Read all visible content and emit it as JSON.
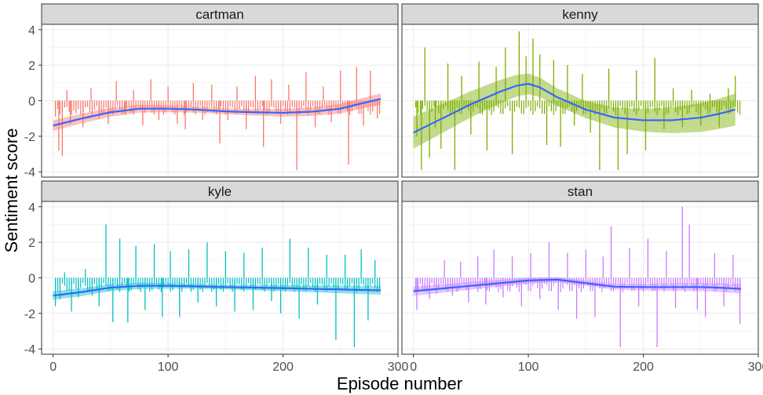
{
  "chart_data": {
    "type": "bar",
    "xlabel": "Episode number",
    "ylabel": "Sentiment score",
    "xlim": [
      -10,
      300
    ],
    "ylim": [
      -4.3,
      4.3
    ],
    "x_ticks": [
      0,
      100,
      200,
      300
    ],
    "x_tick_labels": [
      "0",
      "100",
      "200",
      "300"
    ],
    "y_ticks": [
      -4,
      -2,
      0,
      2,
      4
    ],
    "y_tick_labels": [
      "-4",
      "-2",
      "0",
      "2",
      "4"
    ],
    "grid": true,
    "smooth_color": "#3366ff",
    "panels": [
      {
        "name": "cartman",
        "color": "#f8766d",
        "ribbon_color": "#f8766d",
        "smooth": {
          "x": [
            0,
            25,
            50,
            75,
            100,
            125,
            150,
            175,
            200,
            225,
            250,
            265,
            285
          ],
          "y": [
            -1.4,
            -1.0,
            -0.65,
            -0.45,
            -0.45,
            -0.5,
            -0.6,
            -0.65,
            -0.68,
            -0.62,
            -0.45,
            -0.2,
            0.1
          ]
        },
        "ribbon_half_width": 0.15,
        "bars": {
          "x": [
            2,
            5,
            8,
            12,
            15,
            20,
            26,
            33,
            40,
            48,
            55,
            63,
            70,
            78,
            85,
            92,
            100,
            108,
            115,
            122,
            130,
            138,
            145,
            152,
            160,
            168,
            176,
            183,
            190,
            198,
            205,
            212,
            220,
            228,
            235,
            242,
            250,
            257,
            264,
            270,
            276,
            282
          ],
          "y": [
            -0.9,
            -2.8,
            -3.1,
            0.6,
            -1.3,
            -0.7,
            -1.5,
            0.7,
            -1.0,
            -1.3,
            1.1,
            -0.8,
            0.6,
            -1.4,
            1.2,
            -1.1,
            0.8,
            -1.3,
            -1.6,
            1.0,
            -1.1,
            0.9,
            -2.4,
            -1.1,
            0.8,
            -1.6,
            1.4,
            -2.6,
            1.2,
            -1.3,
            0.9,
            -3.9,
            1.6,
            -1.5,
            0.8,
            -1.2,
            1.7,
            -3.6,
            1.9,
            -1.4,
            1.7,
            -1.0
          ]
        }
      },
      {
        "name": "kenny",
        "color": "#7cae00",
        "ribbon_color": "#7cae00",
        "smooth": {
          "x": [
            0,
            25,
            50,
            75,
            90,
            100,
            110,
            125,
            150,
            175,
            200,
            225,
            250,
            265,
            280
          ],
          "y": [
            -1.8,
            -1.0,
            -0.2,
            0.5,
            0.85,
            0.95,
            0.75,
            0.2,
            -0.5,
            -0.95,
            -1.1,
            -1.1,
            -0.95,
            -0.75,
            -0.5
          ]
        },
        "ribbon_half_width": 0.45,
        "bars": {
          "x": [
            3,
            7,
            10,
            14,
            19,
            24,
            30,
            36,
            42,
            50,
            57,
            64,
            72,
            80,
            86,
            92,
            98,
            104,
            110,
            116,
            122,
            128,
            134,
            140,
            147,
            154,
            162,
            170,
            178,
            186,
            194,
            202,
            210,
            218,
            226,
            234,
            242,
            250,
            258,
            266,
            274,
            280
          ],
          "y": [
            -2.0,
            -3.9,
            3.0,
            -3.2,
            -1.5,
            -2.7,
            2.1,
            -3.9,
            1.4,
            -1.9,
            2.2,
            -2.8,
            1.9,
            3.0,
            -3.0,
            3.9,
            2.5,
            3.5,
            2.6,
            -2.5,
            2.3,
            -2.6,
            2.0,
            -1.4,
            1.5,
            -1.8,
            -3.9,
            1.8,
            -3.9,
            -3.0,
            1.7,
            -2.8,
            2.4,
            -1.6,
            0.7,
            -1.5,
            0.6,
            -1.4,
            0.4,
            -1.5,
            0.7,
            1.4
          ]
        }
      },
      {
        "name": "kyle",
        "color": "#00bfc4",
        "ribbon_color": "#00bfc4",
        "smooth": {
          "x": [
            0,
            25,
            50,
            75,
            100,
            125,
            150,
            175,
            200,
            225,
            250,
            265,
            285
          ],
          "y": [
            -1.0,
            -0.8,
            -0.55,
            -0.45,
            -0.45,
            -0.48,
            -0.52,
            -0.55,
            -0.58,
            -0.62,
            -0.65,
            -0.68,
            -0.7
          ]
        },
        "ribbon_half_width": 0.12,
        "bars": {
          "x": [
            2,
            6,
            10,
            16,
            22,
            28,
            34,
            40,
            46,
            52,
            58,
            65,
            72,
            80,
            88,
            95,
            102,
            110,
            118,
            126,
            134,
            142,
            150,
            158,
            166,
            174,
            182,
            190,
            198,
            206,
            214,
            222,
            230,
            238,
            246,
            254,
            262,
            268,
            274,
            280
          ],
          "y": [
            -1.6,
            -1.2,
            0.3,
            -1.9,
            -1.1,
            0.5,
            -1.0,
            -1.6,
            3.0,
            -2.5,
            2.2,
            -2.5,
            1.8,
            -1.8,
            1.9,
            -2.2,
            1.5,
            -2.2,
            1.6,
            -1.4,
            2.0,
            -1.6,
            1.5,
            -1.9,
            1.4,
            -1.8,
            1.7,
            -1.3,
            -2.0,
            2.2,
            -2.3,
            1.7,
            -1.5,
            1.3,
            -3.5,
            1.3,
            -3.9,
            1.6,
            -2.4,
            1.0
          ]
        }
      },
      {
        "name": "stan",
        "color": "#c77cff",
        "ribbon_color": "#c77cff",
        "smooth": {
          "x": [
            0,
            25,
            50,
            75,
            100,
            125,
            150,
            175,
            200,
            225,
            250,
            265,
            285
          ],
          "y": [
            -0.75,
            -0.6,
            -0.45,
            -0.3,
            -0.15,
            -0.1,
            -0.3,
            -0.5,
            -0.52,
            -0.52,
            -0.52,
            -0.55,
            -0.62
          ]
        },
        "ribbon_half_width": 0.13,
        "bars": {
          "x": [
            3,
            8,
            14,
            20,
            27,
            34,
            41,
            48,
            56,
            63,
            70,
            78,
            86,
            94,
            102,
            110,
            118,
            126,
            134,
            142,
            150,
            158,
            165,
            172,
            180,
            188,
            196,
            204,
            212,
            220,
            228,
            234,
            240,
            247,
            254,
            262,
            270,
            278,
            284
          ],
          "y": [
            -1.8,
            -0.7,
            -1.2,
            -0.9,
            1.0,
            -1.0,
            0.9,
            -1.4,
            1.2,
            -1.5,
            1.6,
            -1.1,
            1.2,
            -1.6,
            1.4,
            -1.2,
            2.0,
            -1.8,
            1.4,
            -2.3,
            1.6,
            -2.2,
            1.2,
            2.9,
            -3.9,
            1.7,
            -1.6,
            2.2,
            -3.9,
            1.5,
            -1.7,
            4.0,
            3.0,
            -1.8,
            -2.2,
            1.4,
            -1.6,
            1.3,
            -2.6
          ]
        }
      }
    ]
  }
}
